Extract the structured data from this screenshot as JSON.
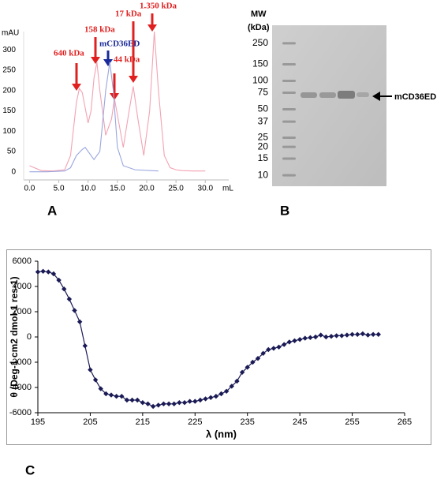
{
  "chart_data": [
    {
      "type": "line",
      "panel_label": "A",
      "ylabel": "mAU",
      "xlabel": "mL",
      "xlim": [
        -1,
        34
      ],
      "ylim": [
        -20,
        345
      ],
      "xticks": [
        {
          "value": 0,
          "label": "0.0"
        },
        {
          "value": 5,
          "label": "5.0"
        },
        {
          "value": 10,
          "label": "10.0"
        },
        {
          "value": 15,
          "label": "15.0"
        },
        {
          "value": 20,
          "label": "20.0"
        },
        {
          "value": 25,
          "label": "25.0"
        },
        {
          "value": 30,
          "label": "30.0"
        }
      ],
      "yticks": [
        0,
        50,
        100,
        150,
        200,
        250,
        300
      ],
      "annotations": [
        "640  kDa",
        "158 kDa",
        "17 kDa",
        "1.350 kDa",
        "44 kDa",
        "mCD36ED"
      ],
      "series": [
        {
          "color": "#f2a3b3",
          "x": [
            0,
            2,
            4,
            6,
            7,
            8,
            8.5,
            9,
            10,
            10.5,
            11,
            11.5,
            12,
            13,
            14,
            14.5,
            15,
            16,
            17,
            17.7,
            18.5,
            19.5,
            20.5,
            21.3,
            22,
            23,
            24,
            25,
            26,
            28,
            30
          ],
          "values": [
            15,
            3,
            2,
            5,
            40,
            170,
            205,
            195,
            120,
            150,
            230,
            270,
            200,
            90,
            130,
            180,
            140,
            60,
            150,
            210,
            130,
            40,
            150,
            345,
            200,
            40,
            10,
            5,
            3,
            2,
            2
          ]
        },
        {
          "color": "#9aa6de",
          "x": [
            0,
            3,
            6,
            7,
            8,
            9,
            9.5,
            10,
            11,
            12,
            13,
            13.7,
            14.3,
            15,
            16,
            18,
            22
          ],
          "values": [
            0,
            0,
            2,
            10,
            40,
            55,
            60,
            50,
            30,
            50,
            200,
            270,
            200,
            60,
            15,
            5,
            2
          ]
        }
      ]
    },
    {
      "type": "gel",
      "panel_label": "B",
      "ylabel_lines": [
        "MW",
        "(kDa)"
      ],
      "band_label": "mCD36ED",
      "log_y": true,
      "ylim": [
        7.8,
        367
      ],
      "yticks": [
        250,
        150,
        100,
        75,
        50,
        37,
        25,
        20,
        15,
        10
      ]
    },
    {
      "type": "line",
      "panel_label": "C",
      "ylabel": "θ (Deg-1 cm2 dmol-1 res-1)",
      "xlabel": "λ (nm)",
      "xlim": [
        195,
        265
      ],
      "ylim": [
        -6000,
        6000
      ],
      "xticks": [
        195,
        205,
        215,
        225,
        235,
        245,
        255,
        265
      ],
      "yticks": [
        6000,
        4000,
        2000,
        0,
        -2000,
        -4000,
        -6000
      ],
      "markers": "diamond",
      "series": [
        {
          "color": "#1a1a55",
          "x": [
            195,
            196,
            197,
            198,
            199,
            200,
            201,
            202,
            203,
            204,
            205,
            206,
            207,
            208,
            209,
            210,
            211,
            212,
            213,
            214,
            215,
            216,
            217,
            218,
            219,
            220,
            221,
            222,
            223,
            224,
            225,
            226,
            227,
            228,
            229,
            230,
            231,
            232,
            233,
            234,
            235,
            236,
            237,
            238,
            239,
            240,
            241,
            242,
            243,
            244,
            245,
            246,
            247,
            248,
            249,
            250,
            251,
            252,
            253,
            254,
            255,
            256,
            257,
            258,
            259,
            260
          ],
          "values": [
            5150,
            5200,
            5150,
            5000,
            4500,
            3800,
            3000,
            2100,
            1200,
            -700,
            -2600,
            -3400,
            -4100,
            -4500,
            -4600,
            -4700,
            -4700,
            -5000,
            -5000,
            -5000,
            -5200,
            -5300,
            -5500,
            -5400,
            -5300,
            -5300,
            -5300,
            -5200,
            -5200,
            -5100,
            -5100,
            -5000,
            -4900,
            -4800,
            -4700,
            -4500,
            -4300,
            -3900,
            -3500,
            -2800,
            -2400,
            -2000,
            -1700,
            -1300,
            -1000,
            -900,
            -800,
            -600,
            -400,
            -300,
            -200,
            -100,
            -50,
            0,
            150,
            0,
            50,
            100,
            100,
            150,
            200,
            200,
            250,
            150,
            200,
            200
          ]
        }
      ]
    }
  ]
}
